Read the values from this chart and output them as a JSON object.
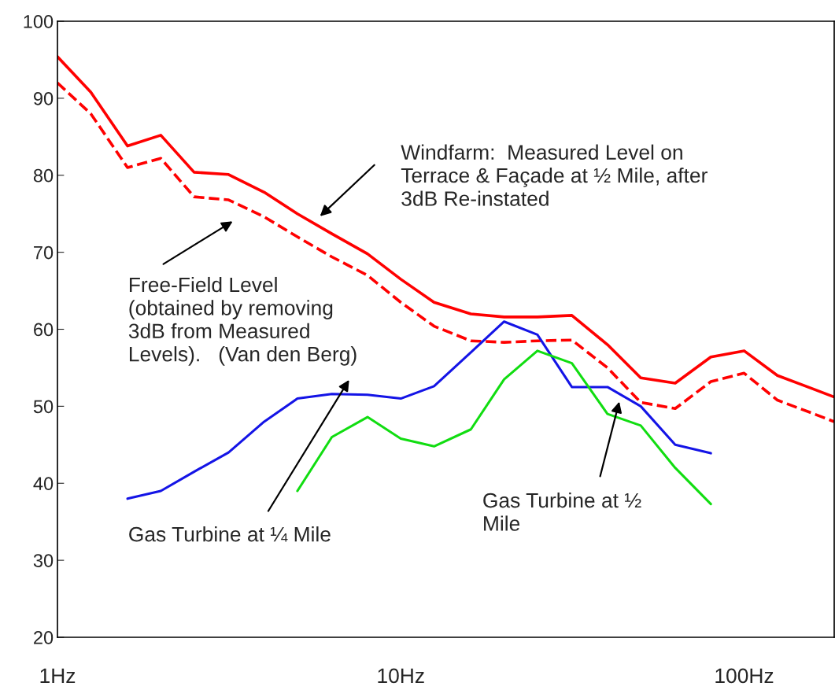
{
  "chart_data": {
    "type": "line",
    "log": "x",
    "grid": false,
    "legend": false,
    "xlim": [
      1,
      183
    ],
    "xticks": [
      {
        "value": 1,
        "label": "1Hz"
      },
      {
        "value": 10,
        "label": "10Hz"
      },
      {
        "value": 100,
        "label": "100Hz"
      }
    ],
    "ylim": [
      20,
      100
    ],
    "yticks": [
      20,
      30,
      40,
      50,
      60,
      70,
      80,
      90,
      100
    ],
    "series": [
      {
        "color": "#ff0000",
        "line_style": "solid",
        "x": [
          1,
          1.25,
          1.6,
          2,
          2.5,
          3.15,
          4,
          5,
          6.3,
          8,
          10,
          12.5,
          16,
          20,
          25,
          31.5,
          40,
          50,
          63,
          80,
          100,
          125,
          160,
          183
        ],
        "values": [
          95.4,
          90.8,
          83.8,
          85.2,
          80.4,
          80.1,
          77.8,
          75,
          72.4,
          69.8,
          66.5,
          63.5,
          62,
          61.6,
          61.6,
          61.8,
          58,
          53.7,
          53,
          56.4,
          57.2,
          54,
          52.2,
          51.2
        ]
      },
      {
        "color": "#ff0000",
        "line_style": "dashed",
        "x": [
          1,
          1.25,
          1.6,
          2,
          2.5,
          3.15,
          4,
          5,
          6.3,
          8,
          10,
          12.5,
          16,
          20,
          25,
          31.5,
          40,
          50,
          63,
          80,
          100,
          125,
          160,
          183
        ],
        "values": [
          92,
          88,
          81,
          82.2,
          77.2,
          76.8,
          74.6,
          72,
          69.4,
          67,
          63.5,
          60.4,
          58.5,
          58.3,
          58.5,
          58.6,
          55,
          50.5,
          49.7,
          53.2,
          54.3,
          50.8,
          49,
          48
        ]
      },
      {
        "color": "#1414e6",
        "line_style": "solid",
        "x": [
          1.6,
          2,
          2.5,
          3.15,
          4,
          5,
          6.3,
          8,
          10,
          12.5,
          16,
          20,
          25,
          31.5,
          40,
          50,
          63,
          80
        ],
        "values": [
          38,
          39,
          41.5,
          44,
          48,
          51,
          51.6,
          51.5,
          51,
          52.6,
          57,
          61,
          59.3,
          52.5,
          52.5,
          50,
          45,
          43.9
        ]
      },
      {
        "color": "#11dd11",
        "line_style": "solid",
        "x": [
          5,
          6.3,
          8,
          10,
          12.5,
          16,
          20,
          25,
          31.5,
          40,
          50,
          63,
          80
        ],
        "values": [
          39,
          46,
          48.6,
          45.8,
          44.8,
          47,
          53.5,
          57.2,
          55.6,
          49,
          47.5,
          42,
          37.3
        ]
      }
    ],
    "annotations": [
      "Windfarm:  Measured Level on\nTerrace & Façade at ½ Mile, after\n3dB Re-instated",
      "Free-Field Level\n(obtained by removing\n3dB from Measured\nLevels).   (Van den Berg)",
      "Gas Turbine at ¼ Mile",
      "Gas Turbine at ½\nMile"
    ]
  }
}
